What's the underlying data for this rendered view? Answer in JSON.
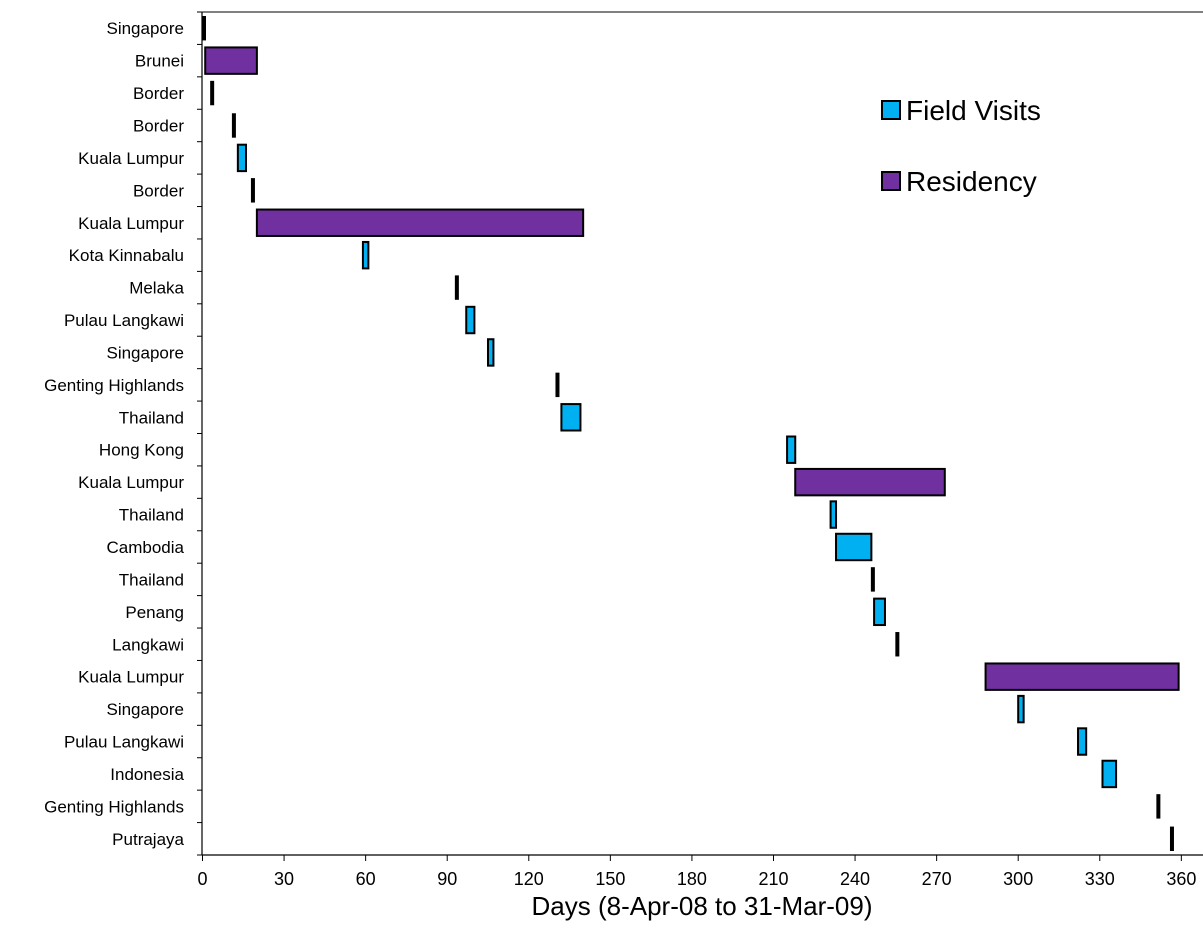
{
  "chart_data": {
    "type": "bar",
    "subtype": "gantt",
    "xlabel": "Days (8-Apr-08 to 31-Mar-09)",
    "xlim": [
      0,
      365
    ],
    "xticks": [
      0,
      30,
      60,
      90,
      120,
      150,
      180,
      210,
      240,
      270,
      300,
      330,
      360
    ],
    "grid": false,
    "legend_position": "top-right",
    "series": [
      {
        "name": "Field Visits",
        "color": "#00b0f0"
      },
      {
        "name": "Residency",
        "color": "#7030a0"
      }
    ],
    "tasks": [
      {
        "label": "Singapore",
        "start": 0,
        "end": 1,
        "type": "marker"
      },
      {
        "label": "Brunei",
        "start": 1,
        "end": 20,
        "type": "Residency"
      },
      {
        "label": "Border",
        "start": 3,
        "end": 4,
        "type": "marker"
      },
      {
        "label": "Border",
        "start": 11,
        "end": 12,
        "type": "marker"
      },
      {
        "label": "Kuala Lumpur",
        "start": 13,
        "end": 16,
        "type": "Field Visits"
      },
      {
        "label": "Border",
        "start": 18,
        "end": 19,
        "type": "marker"
      },
      {
        "label": "Kuala Lumpur",
        "start": 20,
        "end": 140,
        "type": "Residency"
      },
      {
        "label": "Kota Kinnabalu",
        "start": 59,
        "end": 61,
        "type": "Field Visits"
      },
      {
        "label": "Melaka",
        "start": 93,
        "end": 94,
        "type": "marker"
      },
      {
        "label": "Pulau Langkawi",
        "start": 97,
        "end": 100,
        "type": "Field Visits"
      },
      {
        "label": "Singapore",
        "start": 105,
        "end": 107,
        "type": "Field Visits"
      },
      {
        "label": "Genting Highlands",
        "start": 130,
        "end": 131,
        "type": "marker"
      },
      {
        "label": "Thailand",
        "start": 132,
        "end": 139,
        "type": "Field Visits"
      },
      {
        "label": "Hong Kong",
        "start": 215,
        "end": 218,
        "type": "Field Visits"
      },
      {
        "label": "Kuala Lumpur",
        "start": 218,
        "end": 273,
        "type": "Residency"
      },
      {
        "label": "Thailand",
        "start": 231,
        "end": 233,
        "type": "Field Visits"
      },
      {
        "label": "Cambodia",
        "start": 233,
        "end": 246,
        "type": "Field Visits"
      },
      {
        "label": "Thailand",
        "start": 246,
        "end": 247,
        "type": "marker"
      },
      {
        "label": "Penang",
        "start": 247,
        "end": 251,
        "type": "Field Visits"
      },
      {
        "label": "Langkawi",
        "start": 255,
        "end": 256,
        "type": "marker"
      },
      {
        "label": "Kuala Lumpur",
        "start": 288,
        "end": 359,
        "type": "Residency"
      },
      {
        "label": "Singapore",
        "start": 300,
        "end": 302,
        "type": "Field Visits"
      },
      {
        "label": "Pulau Langkawi",
        "start": 322,
        "end": 325,
        "type": "Field Visits"
      },
      {
        "label": "Indonesia",
        "start": 331,
        "end": 336,
        "type": "Field Visits"
      },
      {
        "label": "Genting Highlands",
        "start": 351,
        "end": 352,
        "type": "marker"
      },
      {
        "label": "Putrajaya",
        "start": 356,
        "end": 357,
        "type": "marker"
      }
    ]
  }
}
